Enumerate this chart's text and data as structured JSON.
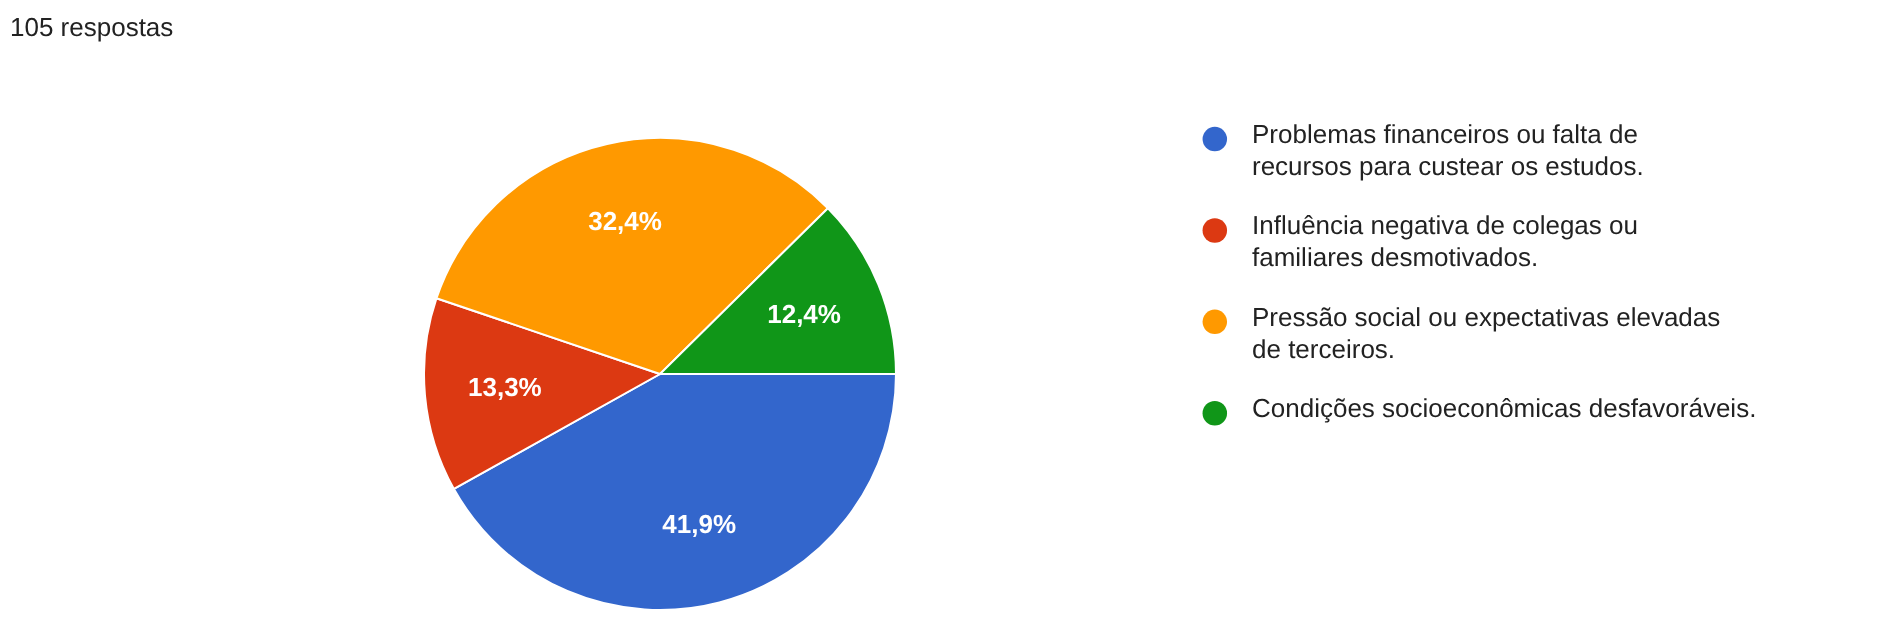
{
  "chart_data": {
    "type": "pie",
    "title": "105 respostas",
    "categories": [
      "Problemas financeiros ou falta de recursos para custear os estudos.",
      "Influência negativa de colegas ou familiares desmotivados.",
      "Pressão social ou expectativas elevadas de terceiros.",
      "Condições socioeconômicas desfavoráveis."
    ],
    "values": [
      41.9,
      13.3,
      32.4,
      12.4
    ],
    "colors": [
      "#3366cc",
      "#dc3912",
      "#ff9900",
      "#109618"
    ],
    "value_labels": [
      "41,9%",
      "13,3%",
      "32,4%",
      "12,4%"
    ],
    "legend": "right"
  }
}
